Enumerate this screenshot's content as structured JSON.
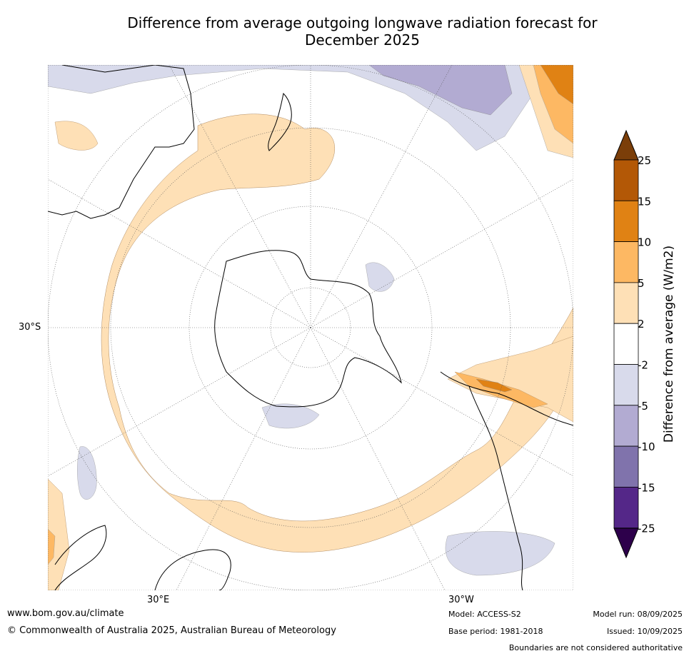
{
  "title_line1": "Difference from average outgoing longwave radiation forecast for",
  "title_line2": "December 2025",
  "map": {
    "lat_label": "30°S",
    "lon_label_east": "30°E",
    "lon_label_west": "30°W"
  },
  "colorbar": {
    "label": "Difference from average (W/m2)",
    "ticks": [
      "25",
      "15",
      "10",
      "5",
      "2",
      "-2",
      "-5",
      "-10",
      "-15",
      "-25"
    ],
    "colors": [
      "#7b3e09",
      "#b35806",
      "#e08214",
      "#fdb863",
      "#fee0b6",
      "#ffffff",
      "#d8daeb",
      "#b2abd2",
      "#8073ac",
      "#542788",
      "#2d004b"
    ]
  },
  "footer": {
    "website": "www.bom.gov.au/climate",
    "copyright": "© Commonwealth of Australia 2025, Australian Bureau of Meteorology",
    "model": "Model: ACCESS-S2",
    "base_period": "Base period: 1981-2018",
    "model_run": "Model run: 08/09/2025",
    "issued": "Issued: 10/09/2025",
    "disclaimer": "Boundaries are not considered authoritative"
  }
}
